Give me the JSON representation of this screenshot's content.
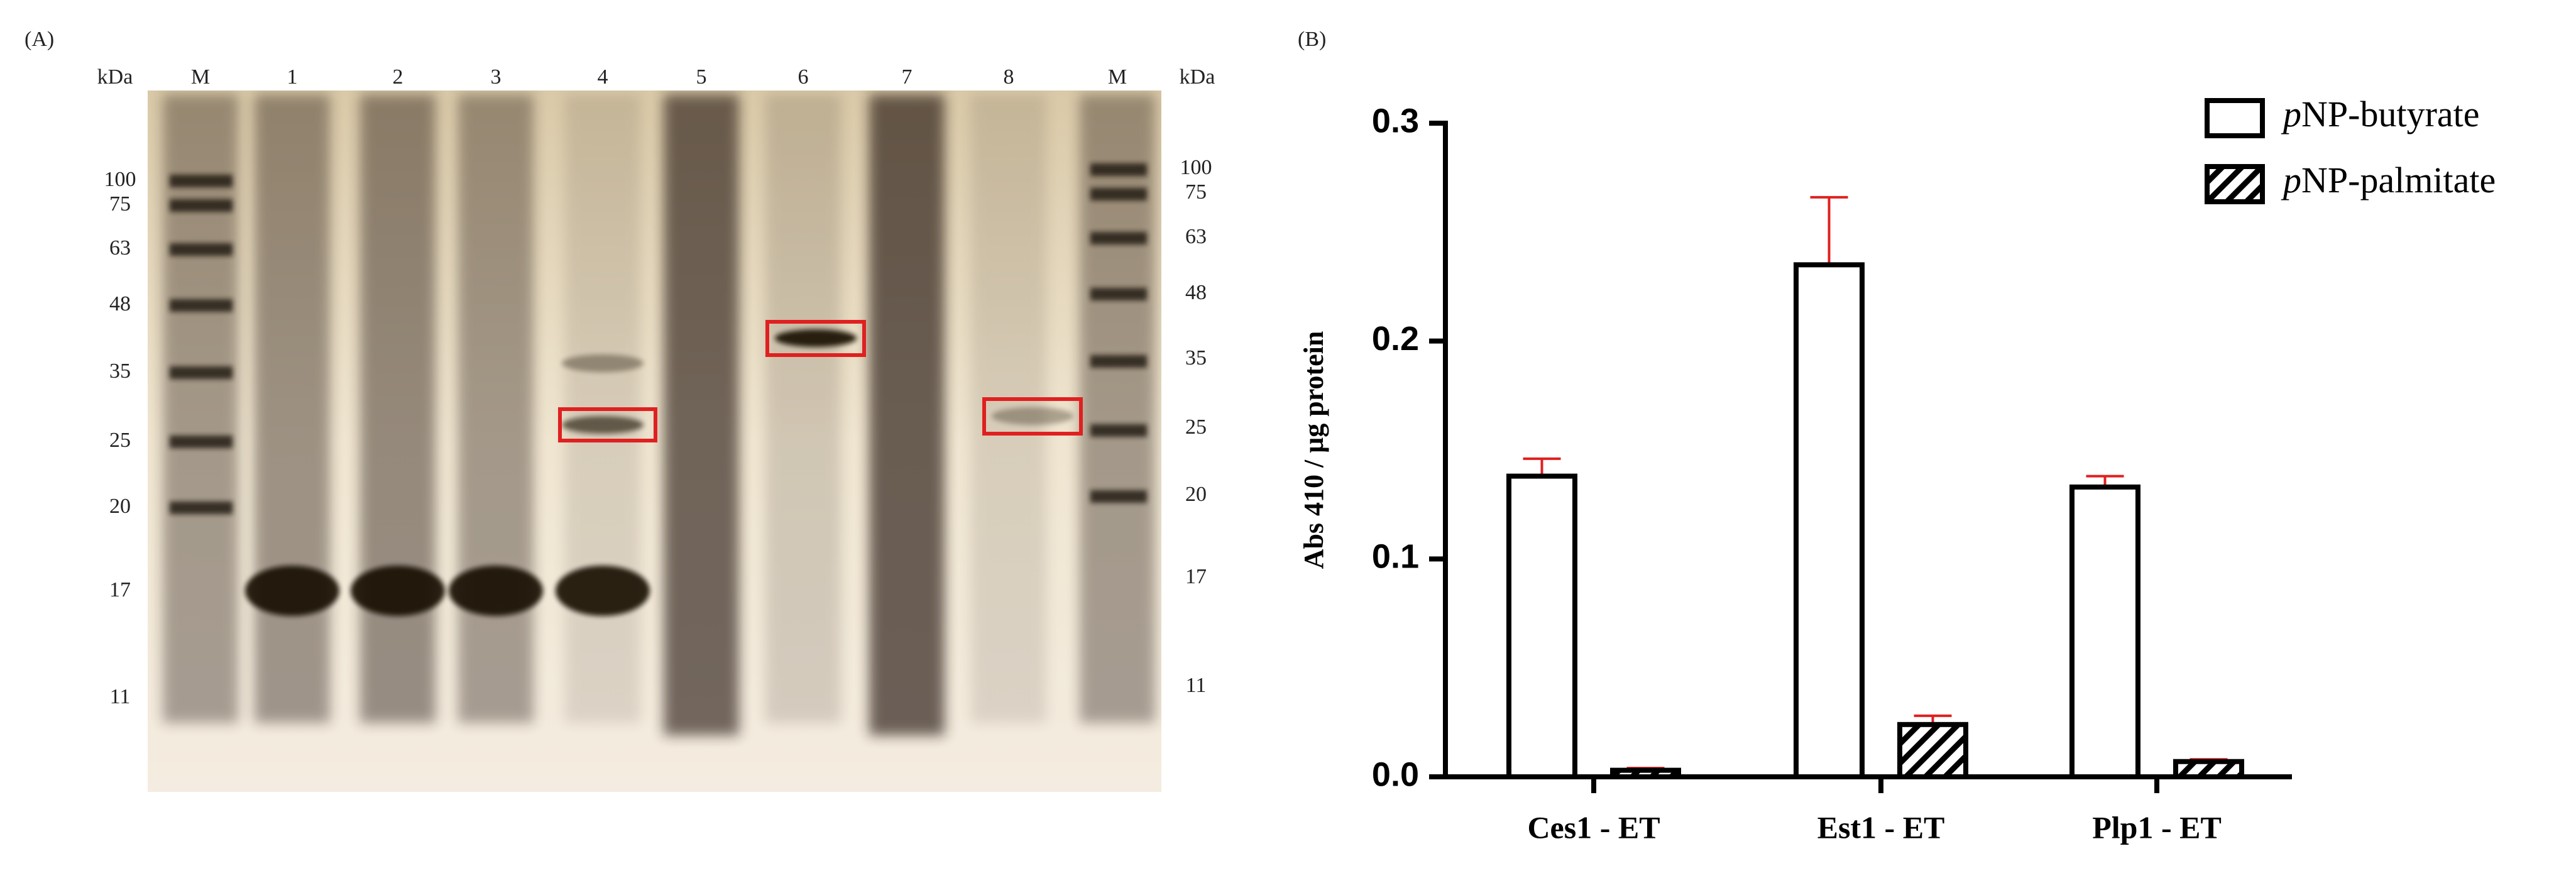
{
  "gel": {
    "panel_label": "(A)",
    "unit_left": "kDa",
    "unit_right": "kDa",
    "lanes": [
      "M",
      "1",
      "2",
      "3",
      "4",
      "5",
      "6",
      "7",
      "8",
      "M"
    ],
    "markers_left": [
      "100",
      "75",
      "63",
      "48",
      "35",
      "25",
      "20",
      "17",
      "11"
    ],
    "markers_right": [
      "100",
      "75",
      "63",
      "48",
      "35",
      "25",
      "20",
      "17",
      "11"
    ]
  },
  "chart_data": {
    "type": "bar",
    "panel_label": "(B)",
    "y_label": "Abs 410 / μg protein",
    "categories": [
      "Ces1 - ET",
      "Est1 - ET",
      "Plp1 - ET"
    ],
    "series": [
      {
        "name": "pNP-butyrate",
        "color": "#000000",
        "fill": "solid-white",
        "values": [
          0.138,
          0.235,
          0.133
        ],
        "errors": [
          0.008,
          0.031,
          0.005
        ]
      },
      {
        "name": "pNP-palmitate",
        "color": "#000000",
        "fill": "hatch",
        "values": [
          0.003,
          0.024,
          0.007
        ],
        "errors": [
          0.001,
          0.004,
          0.001
        ]
      }
    ],
    "error_color": "#e02020",
    "ylim": [
      0,
      0.3
    ],
    "yticks": [
      {
        "value": 0,
        "label": "0.0"
      },
      0.1,
      0.2,
      0.3
    ],
    "legend": "top-right"
  }
}
